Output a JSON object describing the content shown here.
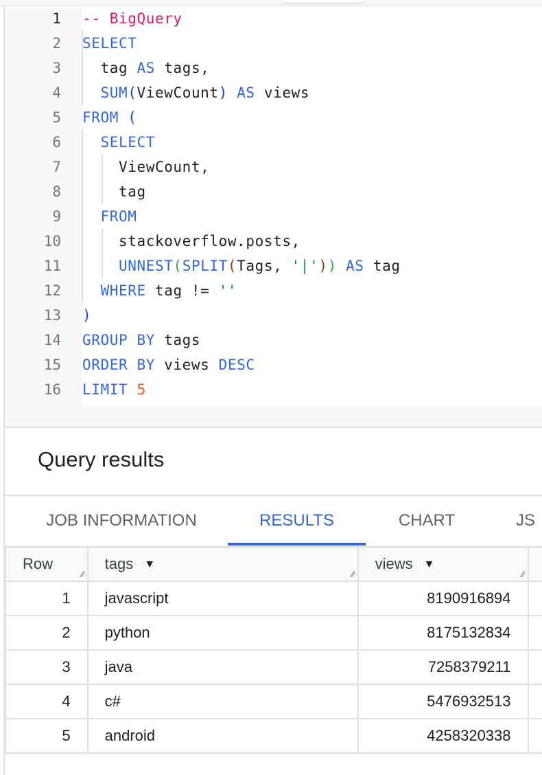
{
  "editor": {
    "lines": [
      {
        "n": "1",
        "tokens": [
          {
            "t": "-- BigQuery",
            "c": "cm"
          }
        ]
      },
      {
        "n": "2",
        "tokens": [
          {
            "t": "SELECT",
            "c": "kw"
          }
        ]
      },
      {
        "n": "3",
        "tokens": [
          {
            "t": "  tag ",
            "c": ""
          },
          {
            "t": "AS",
            "c": "kw"
          },
          {
            "t": " tags,",
            "c": ""
          }
        ]
      },
      {
        "n": "4",
        "tokens": [
          {
            "t": "  ",
            "c": ""
          },
          {
            "t": "SUM",
            "c": "kw"
          },
          {
            "t": "(",
            "c": "p1"
          },
          {
            "t": "ViewCount",
            "c": ""
          },
          {
            "t": ")",
            "c": "p1"
          },
          {
            "t": " ",
            "c": ""
          },
          {
            "t": "AS",
            "c": "kw"
          },
          {
            "t": " views",
            "c": ""
          }
        ]
      },
      {
        "n": "5",
        "tokens": [
          {
            "t": "FROM",
            "c": "kw"
          },
          {
            "t": " ",
            "c": ""
          },
          {
            "t": "(",
            "c": "p1"
          }
        ]
      },
      {
        "n": "6",
        "tokens": [
          {
            "t": "  ",
            "c": ""
          },
          {
            "t": "SELECT",
            "c": "kw"
          }
        ]
      },
      {
        "n": "7",
        "tokens": [
          {
            "t": "    ViewCount,",
            "c": ""
          }
        ]
      },
      {
        "n": "8",
        "tokens": [
          {
            "t": "    tag",
            "c": ""
          }
        ]
      },
      {
        "n": "9",
        "tokens": [
          {
            "t": "  ",
            "c": ""
          },
          {
            "t": "FROM",
            "c": "kw"
          }
        ]
      },
      {
        "n": "10",
        "tokens": [
          {
            "t": "    stackoverflow.posts,",
            "c": ""
          }
        ]
      },
      {
        "n": "11",
        "tokens": [
          {
            "t": "    ",
            "c": ""
          },
          {
            "t": "UNNEST",
            "c": "kw"
          },
          {
            "t": "(",
            "c": "p2"
          },
          {
            "t": "SPLIT",
            "c": "kw"
          },
          {
            "t": "(",
            "c": "p3"
          },
          {
            "t": "Tags, ",
            "c": ""
          },
          {
            "t": "'|'",
            "c": "str"
          },
          {
            "t": ")",
            "c": "p3"
          },
          {
            "t": ")",
            "c": "p2"
          },
          {
            "t": " ",
            "c": ""
          },
          {
            "t": "AS",
            "c": "kw"
          },
          {
            "t": " tag",
            "c": ""
          }
        ]
      },
      {
        "n": "12",
        "tokens": [
          {
            "t": "  ",
            "c": ""
          },
          {
            "t": "WHERE",
            "c": "kw"
          },
          {
            "t": " tag != ",
            "c": ""
          },
          {
            "t": "''",
            "c": "str"
          }
        ]
      },
      {
        "n": "13",
        "tokens": [
          {
            "t": ")",
            "c": "p1"
          }
        ]
      },
      {
        "n": "14",
        "tokens": [
          {
            "t": "GROUP BY",
            "c": "kw"
          },
          {
            "t": " tags",
            "c": ""
          }
        ]
      },
      {
        "n": "15",
        "tokens": [
          {
            "t": "ORDER BY",
            "c": "kw"
          },
          {
            "t": " views ",
            "c": ""
          },
          {
            "t": "DESC",
            "c": "kw"
          }
        ]
      },
      {
        "n": "16",
        "tokens": [
          {
            "t": "LIMIT",
            "c": "kw"
          },
          {
            "t": " ",
            "c": ""
          },
          {
            "t": "5",
            "c": "num"
          }
        ]
      }
    ]
  },
  "results": {
    "title": "Query results",
    "tabs": [
      {
        "label": "JOB INFORMATION",
        "active": false
      },
      {
        "label": "RESULTS",
        "active": true
      },
      {
        "label": "CHART",
        "active": false
      },
      {
        "label": "JS",
        "active": false
      }
    ],
    "columns": [
      "Row",
      "tags",
      "views"
    ],
    "rows": [
      {
        "row": "1",
        "tags": "javascript",
        "views": "8190916894"
      },
      {
        "row": "2",
        "tags": "python",
        "views": "8175132834"
      },
      {
        "row": "3",
        "tags": "java",
        "views": "7258379211"
      },
      {
        "row": "4",
        "tags": "c#",
        "views": "5476932513"
      },
      {
        "row": "5",
        "tags": "android",
        "views": "4258320338"
      }
    ]
  },
  "colors": {
    "accent": "#3367d6",
    "keyword": "#3367d6",
    "comment": "#d81b60",
    "number": "#f4511e",
    "string": "#0d904f"
  }
}
